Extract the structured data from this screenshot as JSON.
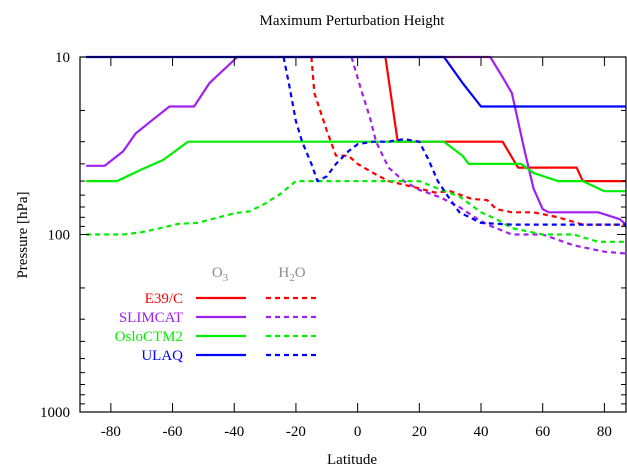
{
  "chart_data": {
    "type": "line",
    "title": "Maximum Perturbation Height",
    "xlabel": "Latitude",
    "ylabel": "Pressure [hPa]",
    "xlim": [
      -90,
      87
    ],
    "ylim": [
      1000,
      10
    ],
    "y_scale": "log",
    "y_reversed": true,
    "grid": false,
    "x_ticks": [
      -80,
      -60,
      -40,
      -20,
      0,
      20,
      40,
      60,
      80
    ],
    "x_tick_labels": [
      "-80",
      "-60",
      "-40",
      "-20",
      "0",
      "20",
      "40",
      "60",
      "80"
    ],
    "y_ticks": [
      10,
      100,
      1000
    ],
    "y_tick_labels": [
      "10",
      "100",
      "1000"
    ],
    "legend": {
      "placement": "bottom-left",
      "column_headers": [
        "O3",
        "H2O"
      ],
      "entries": [
        "E39/C",
        "SLIMCAT",
        "OsloCTM2",
        "ULAQ"
      ]
    },
    "colors": {
      "E39/C": "#ff0000",
      "SLIMCAT": "#a020f0",
      "OsloCTM2": "#00ee00",
      "ULAQ": "#0000ff"
    },
    "series": [
      {
        "name": "E39/C",
        "variable": "O3",
        "style": "solid",
        "points": [
          [
            9,
            10
          ],
          [
            13,
            30
          ],
          [
            47,
            30
          ],
          [
            52,
            42
          ],
          [
            71,
            42
          ],
          [
            73,
            50
          ],
          [
            87,
            50
          ]
        ]
      },
      {
        "name": "E39/C",
        "variable": "H2O",
        "style": "dashed",
        "points": [
          [
            -15,
            10
          ],
          [
            -14,
            16
          ],
          [
            -10,
            26
          ],
          [
            -7,
            36
          ],
          [
            -3,
            36
          ],
          [
            0,
            40
          ],
          [
            5,
            45
          ],
          [
            10,
            50
          ],
          [
            20,
            55
          ],
          [
            25,
            58
          ],
          [
            30,
            57
          ],
          [
            37,
            63
          ],
          [
            42,
            64
          ],
          [
            45,
            72
          ],
          [
            50,
            75
          ],
          [
            57,
            75
          ],
          [
            65,
            80
          ],
          [
            73,
            88
          ],
          [
            87,
            88
          ]
        ]
      },
      {
        "name": "SLIMCAT",
        "variable": "O3",
        "style": "solid",
        "points": [
          [
            -88,
            41
          ],
          [
            -82,
            41
          ],
          [
            -76,
            34
          ],
          [
            -72,
            27
          ],
          [
            -67,
            23
          ],
          [
            -61,
            19
          ],
          [
            -53,
            19
          ],
          [
            -48,
            14
          ],
          [
            -39,
            10
          ],
          [
            43,
            10
          ],
          [
            47,
            13
          ],
          [
            50,
            16
          ],
          [
            54,
            33
          ],
          [
            57,
            55
          ],
          [
            60,
            72
          ],
          [
            62,
            75
          ],
          [
            78,
            75
          ],
          [
            85,
            82
          ],
          [
            87,
            88
          ]
        ]
      },
      {
        "name": "SLIMCAT",
        "variable": "H2O",
        "style": "dashed",
        "points": [
          [
            -2,
            10
          ],
          [
            1,
            15
          ],
          [
            4,
            22
          ],
          [
            6,
            30
          ],
          [
            10,
            42
          ],
          [
            15,
            50
          ],
          [
            20,
            56
          ],
          [
            27,
            62
          ],
          [
            33,
            70
          ],
          [
            38,
            80
          ],
          [
            42,
            88
          ],
          [
            50,
            100
          ],
          [
            60,
            100
          ],
          [
            70,
            115
          ],
          [
            80,
            125
          ],
          [
            87,
            128
          ]
        ]
      },
      {
        "name": "OsloCTM2",
        "variable": "O3",
        "style": "solid",
        "points": [
          [
            -88,
            50
          ],
          [
            -78,
            50
          ],
          [
            -70,
            43
          ],
          [
            -63,
            38
          ],
          [
            -55,
            30
          ],
          [
            28,
            30
          ],
          [
            34,
            36
          ],
          [
            36,
            40
          ],
          [
            53,
            40
          ],
          [
            57,
            45
          ],
          [
            65,
            50
          ],
          [
            73,
            50
          ],
          [
            80,
            57
          ],
          [
            87,
            57
          ]
        ]
      },
      {
        "name": "OsloCTM2",
        "variable": "H2O",
        "style": "dashed",
        "points": [
          [
            -88,
            100
          ],
          [
            -76,
            100
          ],
          [
            -70,
            97
          ],
          [
            -65,
            93
          ],
          [
            -58,
            87
          ],
          [
            -52,
            86
          ],
          [
            -45,
            80
          ],
          [
            -40,
            76
          ],
          [
            -35,
            74
          ],
          [
            -30,
            67
          ],
          [
            -25,
            59
          ],
          [
            -20,
            50
          ],
          [
            20,
            50
          ],
          [
            27,
            56
          ],
          [
            33,
            61
          ],
          [
            40,
            75
          ],
          [
            45,
            82
          ],
          [
            50,
            92
          ],
          [
            60,
            100
          ],
          [
            70,
            100
          ],
          [
            78,
            110
          ],
          [
            87,
            110
          ]
        ]
      },
      {
        "name": "ULAQ",
        "variable": "O3",
        "style": "solid",
        "points": [
          [
            -88,
            10
          ],
          [
            28,
            10
          ],
          [
            34,
            14
          ],
          [
            40,
            19
          ],
          [
            87,
            19
          ]
        ]
      },
      {
        "name": "ULAQ",
        "variable": "H2O",
        "style": "dashed",
        "points": [
          [
            -24,
            10
          ],
          [
            -22,
            15
          ],
          [
            -20,
            23
          ],
          [
            -18,
            30
          ],
          [
            -15,
            40
          ],
          [
            -13,
            50
          ],
          [
            -10,
            47
          ],
          [
            -7,
            40
          ],
          [
            -3,
            34
          ],
          [
            0,
            31
          ],
          [
            5,
            30
          ],
          [
            10,
            30
          ],
          [
            15,
            29
          ],
          [
            20,
            30
          ],
          [
            23,
            38
          ],
          [
            26,
            50
          ],
          [
            29,
            60
          ],
          [
            33,
            75
          ],
          [
            40,
            86
          ],
          [
            50,
            88
          ],
          [
            87,
            88
          ]
        ]
      }
    ]
  }
}
